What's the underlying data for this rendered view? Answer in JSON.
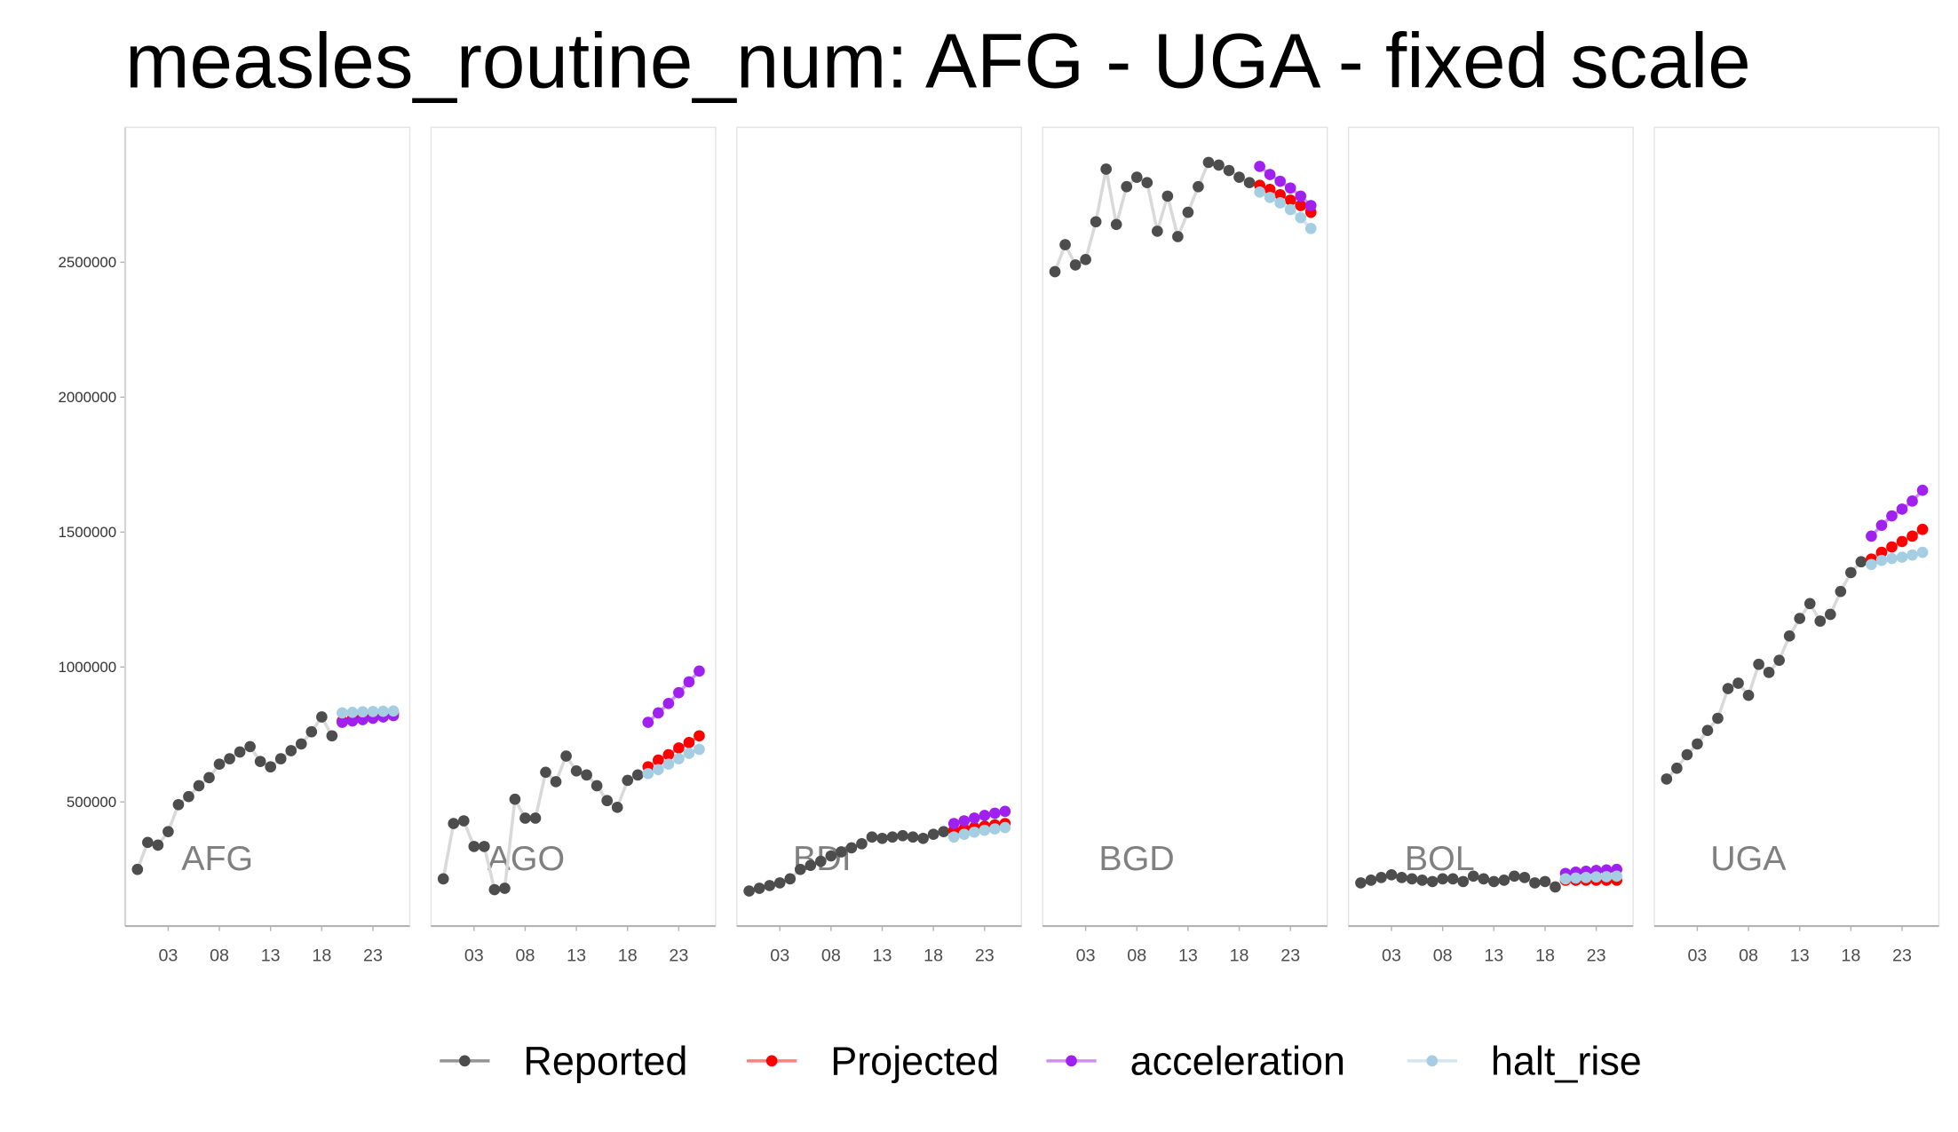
{
  "chart_data": {
    "type": "line",
    "title": "measles_routine_num: AFG - UGA - fixed scale",
    "x": [
      2000,
      2001,
      2002,
      2003,
      2004,
      2005,
      2006,
      2007,
      2008,
      2009,
      2010,
      2011,
      2012,
      2013,
      2014,
      2015,
      2016,
      2017,
      2018,
      2019,
      2020,
      2021,
      2022,
      2023,
      2024,
      2025
    ],
    "xlim": [
      1998.8,
      2026.6
    ],
    "xticks": [
      {
        "value": 2003,
        "label": "03"
      },
      {
        "value": 2008,
        "label": "08"
      },
      {
        "value": 2013,
        "label": "13"
      },
      {
        "value": 2018,
        "label": "18"
      },
      {
        "value": 2023,
        "label": "23"
      }
    ],
    "ylim": [
      40000,
      3000000
    ],
    "yticks": [
      500000,
      1000000,
      1500000,
      2000000,
      2500000
    ],
    "legend": "bottom",
    "series": [
      {
        "name": "Reported",
        "color": "#4d4d4d"
      },
      {
        "name": "Projected",
        "color": "#ff0000"
      },
      {
        "name": "acceleration",
        "color": "#a020f0"
      },
      {
        "name": "halt_rise",
        "color": "#a6cee3"
      }
    ],
    "panels": [
      {
        "label": "AFG",
        "series": [
          {
            "values": [
              250000,
              350000,
              340000,
              390000,
              490000,
              520000,
              560000,
              590000,
              640000,
              660000,
              685000,
              705000,
              650000,
              630000,
              660000,
              690000,
              715000,
              760000,
              815000,
              745000,
              null,
              null,
              null,
              null,
              null,
              null
            ]
          },
          {
            "values": [
              null,
              null,
              null,
              null,
              null,
              null,
              null,
              null,
              null,
              null,
              null,
              null,
              null,
              null,
              null,
              null,
              null,
              null,
              null,
              null,
              800000,
              808000,
              815000,
              820000,
              825000,
              830000
            ]
          },
          {
            "values": [
              null,
              null,
              null,
              null,
              null,
              null,
              null,
              null,
              null,
              null,
              null,
              null,
              null,
              null,
              null,
              null,
              null,
              null,
              null,
              null,
              795000,
              800000,
              805000,
              810000,
              815000,
              820000
            ]
          },
          {
            "values": [
              null,
              null,
              null,
              null,
              null,
              null,
              null,
              null,
              null,
              null,
              null,
              null,
              null,
              null,
              null,
              null,
              null,
              null,
              null,
              null,
              830000,
              832000,
              834000,
              835000,
              836000,
              837000
            ]
          }
        ]
      },
      {
        "label": "AGO",
        "series": [
          {
            "values": [
              215000,
              420000,
              430000,
              335000,
              335000,
              175000,
              180000,
              510000,
              440000,
              440000,
              610000,
              575000,
              670000,
              615000,
              600000,
              560000,
              505000,
              480000,
              580000,
              600000,
              null,
              null,
              null,
              null,
              null,
              null
            ]
          },
          {
            "values": [
              null,
              null,
              null,
              null,
              null,
              null,
              null,
              null,
              null,
              null,
              null,
              null,
              null,
              null,
              null,
              null,
              null,
              null,
              null,
              null,
              630000,
              655000,
              675000,
              700000,
              720000,
              745000
            ]
          },
          {
            "values": [
              null,
              null,
              null,
              null,
              null,
              null,
              null,
              null,
              null,
              null,
              null,
              null,
              null,
              null,
              null,
              null,
              null,
              null,
              null,
              null,
              795000,
              830000,
              865000,
              905000,
              945000,
              985000
            ]
          },
          {
            "values": [
              null,
              null,
              null,
              null,
              null,
              null,
              null,
              null,
              null,
              null,
              null,
              null,
              null,
              null,
              null,
              null,
              null,
              null,
              null,
              null,
              605000,
              620000,
              640000,
              660000,
              680000,
              695000
            ]
          }
        ]
      },
      {
        "label": "BDI",
        "series": [
          {
            "values": [
              170000,
              180000,
              190000,
              200000,
              215000,
              250000,
              265000,
              280000,
              300000,
              315000,
              330000,
              345000,
              370000,
              365000,
              370000,
              375000,
              370000,
              365000,
              380000,
              390000,
              null,
              null,
              null,
              null,
              null,
              null
            ]
          },
          {
            "values": [
              null,
              null,
              null,
              null,
              null,
              null,
              null,
              null,
              null,
              null,
              null,
              null,
              null,
              null,
              null,
              null,
              null,
              null,
              null,
              null,
              395000,
              400000,
              405000,
              410000,
              415000,
              420000
            ]
          },
          {
            "values": [
              null,
              null,
              null,
              null,
              null,
              null,
              null,
              null,
              null,
              null,
              null,
              null,
              null,
              null,
              null,
              null,
              null,
              null,
              null,
              null,
              420000,
              430000,
              440000,
              450000,
              458000,
              465000
            ]
          },
          {
            "values": [
              null,
              null,
              null,
              null,
              null,
              null,
              null,
              null,
              null,
              null,
              null,
              null,
              null,
              null,
              null,
              null,
              null,
              null,
              null,
              null,
              370000,
              380000,
              388000,
              395000,
              400000,
              405000
            ]
          }
        ]
      },
      {
        "label": "BGD",
        "series": [
          {
            "values": [
              2465000,
              2565000,
              2490000,
              2510000,
              2650000,
              2845000,
              2640000,
              2780000,
              2815000,
              2795000,
              2615000,
              2745000,
              2595000,
              2685000,
              2780000,
              2870000,
              2860000,
              2840000,
              2815000,
              2795000,
              null,
              null,
              null,
              null,
              null,
              null
            ]
          },
          {
            "values": [
              null,
              null,
              null,
              null,
              null,
              null,
              null,
              null,
              null,
              null,
              null,
              null,
              null,
              null,
              null,
              null,
              null,
              null,
              null,
              null,
              2785000,
              2770000,
              2750000,
              2730000,
              2710000,
              2685000
            ]
          },
          {
            "values": [
              null,
              null,
              null,
              null,
              null,
              null,
              null,
              null,
              null,
              null,
              null,
              null,
              null,
              null,
              null,
              null,
              null,
              null,
              null,
              null,
              2855000,
              2825000,
              2800000,
              2775000,
              2745000,
              2710000
            ]
          },
          {
            "values": [
              null,
              null,
              null,
              null,
              null,
              null,
              null,
              null,
              null,
              null,
              null,
              null,
              null,
              null,
              null,
              null,
              null,
              null,
              null,
              null,
              2760000,
              2740000,
              2720000,
              2695000,
              2665000,
              2625000
            ]
          }
        ]
      },
      {
        "label": "BOL",
        "series": [
          {
            "values": [
              200000,
              210000,
              220000,
              230000,
              220000,
              215000,
              210000,
              205000,
              215000,
              215000,
              205000,
              225000,
              215000,
              205000,
              210000,
              225000,
              220000,
              200000,
              205000,
              185000,
              null,
              null,
              null,
              null,
              null,
              null
            ]
          },
          {
            "values": [
              null,
              null,
              null,
              null,
              null,
              null,
              null,
              null,
              null,
              null,
              null,
              null,
              null,
              null,
              null,
              null,
              null,
              null,
              null,
              null,
              210000,
              210000,
              210000,
              210000,
              210000,
              210000
            ]
          },
          {
            "values": [
              null,
              null,
              null,
              null,
              null,
              null,
              null,
              null,
              null,
              null,
              null,
              null,
              null,
              null,
              null,
              null,
              null,
              null,
              null,
              null,
              235000,
              240000,
              243000,
              246000,
              248000,
              250000
            ]
          },
          {
            "values": [
              null,
              null,
              null,
              null,
              null,
              null,
              null,
              null,
              null,
              null,
              null,
              null,
              null,
              null,
              null,
              null,
              null,
              null,
              null,
              null,
              215000,
              218000,
              220000,
              222000,
              223000,
              225000
            ]
          }
        ]
      },
      {
        "label": "UGA",
        "series": [
          {
            "values": [
              585000,
              625000,
              675000,
              715000,
              765000,
              810000,
              920000,
              940000,
              895000,
              1010000,
              980000,
              1025000,
              1115000,
              1180000,
              1235000,
              1170000,
              1195000,
              1280000,
              1350000,
              1390000,
              null,
              null,
              null,
              null,
              null,
              null
            ]
          },
          {
            "values": [
              null,
              null,
              null,
              null,
              null,
              null,
              null,
              null,
              null,
              null,
              null,
              null,
              null,
              null,
              null,
              null,
              null,
              null,
              null,
              null,
              1400000,
              1425000,
              1445000,
              1465000,
              1485000,
              1510000
            ]
          },
          {
            "values": [
              null,
              null,
              null,
              null,
              null,
              null,
              null,
              null,
              null,
              null,
              null,
              null,
              null,
              null,
              null,
              null,
              null,
              null,
              null,
              null,
              1485000,
              1525000,
              1560000,
              1585000,
              1615000,
              1655000
            ]
          },
          {
            "values": [
              null,
              null,
              null,
              null,
              null,
              null,
              null,
              null,
              null,
              null,
              null,
              null,
              null,
              null,
              null,
              null,
              null,
              null,
              null,
              null,
              1380000,
              1395000,
              1402000,
              1407000,
              1415000,
              1425000
            ]
          }
        ]
      }
    ]
  }
}
